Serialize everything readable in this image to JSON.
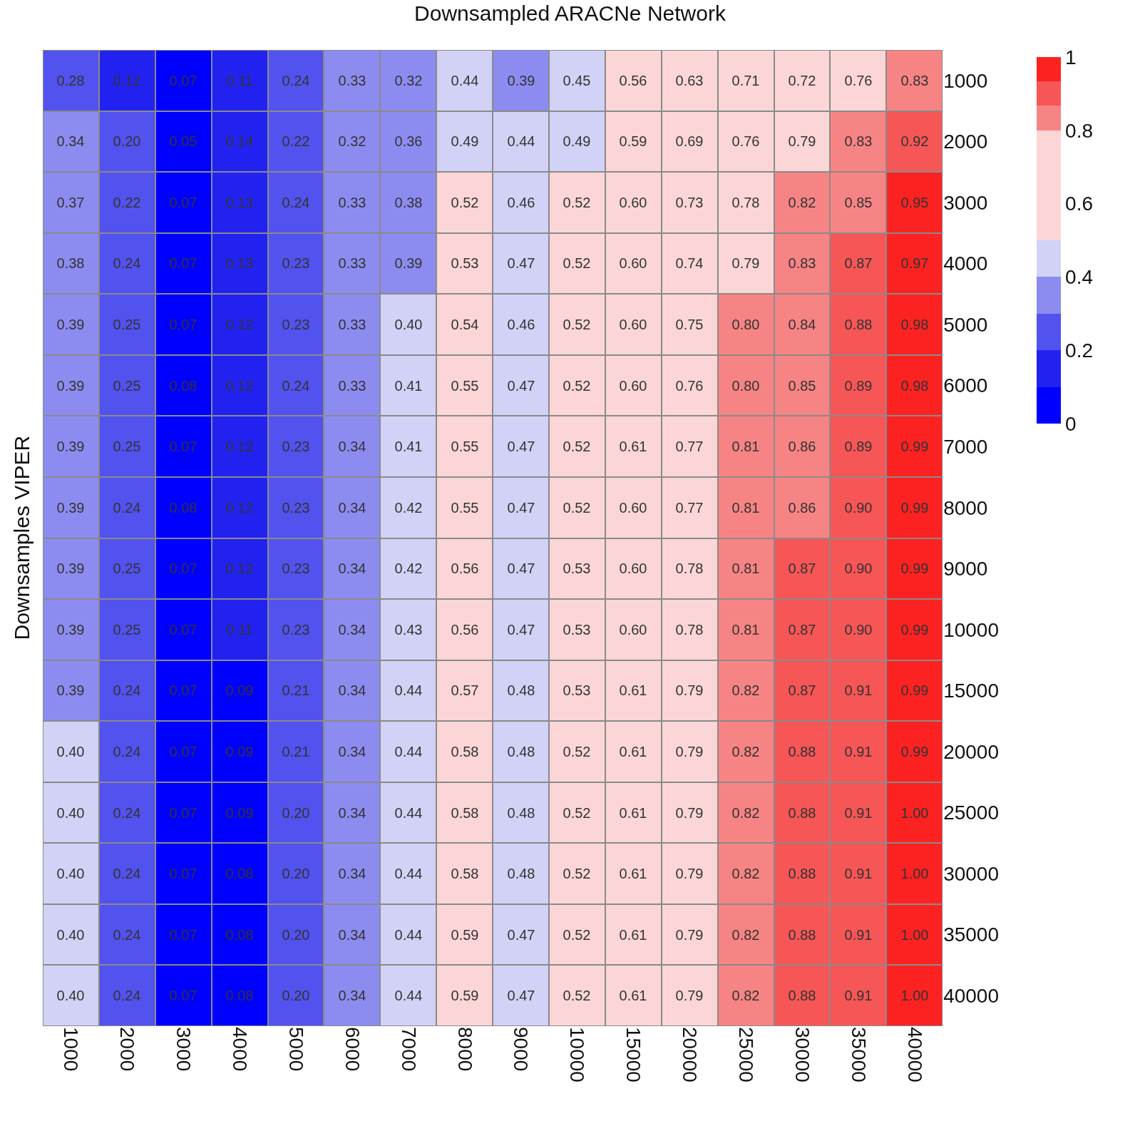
{
  "chart_data": {
    "type": "heatmap",
    "title": "Downsampled ARACNe Network",
    "ylabel": "Downsamples VIPER",
    "categories": [
      "1000",
      "2000",
      "3000",
      "4000",
      "5000",
      "6000",
      "7000",
      "8000",
      "9000",
      "10000",
      "15000",
      "20000",
      "25000",
      "30000",
      "35000",
      "40000"
    ],
    "y_categories": [
      "1000",
      "2000",
      "3000",
      "4000",
      "5000",
      "6000",
      "7000",
      "8000",
      "9000",
      "10000",
      "15000",
      "20000",
      "25000",
      "30000",
      "35000",
      "40000"
    ],
    "cells": [
      [
        0.28,
        0.12,
        0.07,
        0.11,
        0.24,
        0.33,
        0.32,
        0.44,
        0.39,
        0.45,
        0.56,
        0.63,
        0.71,
        0.72,
        0.76,
        0.83
      ],
      [
        0.34,
        0.2,
        0.05,
        0.14,
        0.22,
        0.32,
        0.36,
        0.49,
        0.44,
        0.49,
        0.59,
        0.69,
        0.76,
        0.79,
        0.83,
        0.92
      ],
      [
        0.37,
        0.22,
        0.07,
        0.13,
        0.24,
        0.33,
        0.38,
        0.52,
        0.46,
        0.52,
        0.6,
        0.73,
        0.78,
        0.82,
        0.85,
        0.95
      ],
      [
        0.38,
        0.24,
        0.07,
        0.13,
        0.23,
        0.33,
        0.39,
        0.53,
        0.47,
        0.52,
        0.6,
        0.74,
        0.79,
        0.83,
        0.87,
        0.97
      ],
      [
        0.39,
        0.25,
        0.07,
        0.12,
        0.23,
        0.33,
        0.4,
        0.54,
        0.46,
        0.52,
        0.6,
        0.75,
        0.8,
        0.84,
        0.88,
        0.98
      ],
      [
        0.39,
        0.25,
        0.08,
        0.12,
        0.24,
        0.33,
        0.41,
        0.55,
        0.47,
        0.52,
        0.6,
        0.76,
        0.8,
        0.85,
        0.89,
        0.98
      ],
      [
        0.39,
        0.25,
        0.07,
        0.12,
        0.23,
        0.34,
        0.41,
        0.55,
        0.47,
        0.52,
        0.61,
        0.77,
        0.81,
        0.86,
        0.89,
        0.99
      ],
      [
        0.39,
        0.24,
        0.08,
        0.12,
        0.23,
        0.34,
        0.42,
        0.55,
        0.47,
        0.52,
        0.6,
        0.77,
        0.81,
        0.86,
        0.9,
        0.99
      ],
      [
        0.39,
        0.25,
        0.07,
        0.12,
        0.23,
        0.34,
        0.42,
        0.56,
        0.47,
        0.53,
        0.6,
        0.78,
        0.81,
        0.87,
        0.9,
        0.99
      ],
      [
        0.39,
        0.25,
        0.07,
        0.11,
        0.23,
        0.34,
        0.43,
        0.56,
        0.47,
        0.53,
        0.6,
        0.78,
        0.81,
        0.87,
        0.9,
        0.99
      ],
      [
        0.39,
        0.24,
        0.07,
        0.09,
        0.21,
        0.34,
        0.44,
        0.57,
        0.48,
        0.53,
        0.61,
        0.79,
        0.82,
        0.87,
        0.91,
        0.99
      ],
      [
        0.4,
        0.24,
        0.07,
        0.09,
        0.21,
        0.34,
        0.44,
        0.58,
        0.48,
        0.52,
        0.61,
        0.79,
        0.82,
        0.88,
        0.91,
        0.99
      ],
      [
        0.4,
        0.24,
        0.07,
        0.09,
        0.2,
        0.34,
        0.44,
        0.58,
        0.48,
        0.52,
        0.61,
        0.79,
        0.82,
        0.88,
        0.91,
        1.0
      ],
      [
        0.4,
        0.24,
        0.07,
        0.08,
        0.2,
        0.34,
        0.44,
        0.58,
        0.48,
        0.52,
        0.61,
        0.79,
        0.82,
        0.88,
        0.91,
        1.0
      ],
      [
        0.4,
        0.24,
        0.07,
        0.08,
        0.2,
        0.34,
        0.44,
        0.59,
        0.47,
        0.52,
        0.61,
        0.79,
        0.82,
        0.88,
        0.91,
        1.0
      ],
      [
        0.4,
        0.24,
        0.07,
        0.08,
        0.2,
        0.34,
        0.44,
        0.59,
        0.47,
        0.52,
        0.61,
        0.79,
        0.82,
        0.88,
        0.91,
        1.0
      ]
    ],
    "cell_labels": [
      [
        "0.28",
        "0.12",
        "0.07",
        "0.11",
        "0.24",
        "0.33",
        "0.32",
        "0.44",
        "0.39",
        "0.45",
        "0.56",
        "0.63",
        "0.71",
        "0.72",
        "0.76",
        "0.83"
      ],
      [
        "0.34",
        "0.20",
        "0.05",
        "0.14",
        "0.22",
        "0.32",
        "0.36",
        "0.49",
        "0.44",
        "0.49",
        "0.59",
        "0.69",
        "0.76",
        "0.79",
        "0.83",
        "0.92"
      ],
      [
        "0.37",
        "0.22",
        "0.07",
        "0.13",
        "0.24",
        "0.33",
        "0.38",
        "0.52",
        "0.46",
        "0.52",
        "0.60",
        "0.73",
        "0.78",
        "0.82",
        "0.85",
        "0.95"
      ],
      [
        "0.38",
        "0.24",
        "0.07",
        "0.13",
        "0.23",
        "0.33",
        "0.39",
        "0.53",
        "0.47",
        "0.52",
        "0.60",
        "0.74",
        "0.79",
        "0.83",
        "0.87",
        "0.97"
      ],
      [
        "0.39",
        "0.25",
        "0.07",
        "0.12",
        "0.23",
        "0.33",
        "0.40",
        "0.54",
        "0.46",
        "0.52",
        "0.60",
        "0.75",
        "0.80",
        "0.84",
        "0.88",
        "0.98"
      ],
      [
        "0.39",
        "0.25",
        "0.08",
        "0.12",
        "0.24",
        "0.33",
        "0.41",
        "0.55",
        "0.47",
        "0.52",
        "0.60",
        "0.76",
        "0.80",
        "0.85",
        "0.89",
        "0.98"
      ],
      [
        "0.39",
        "0.25",
        "0.07",
        "0.12",
        "0.23",
        "0.34",
        "0.41",
        "0.55",
        "0.47",
        "0.52",
        "0.61",
        "0.77",
        "0.81",
        "0.86",
        "0.89",
        "0.99"
      ],
      [
        "0.39",
        "0.24",
        "0.08",
        "0.12",
        "0.23",
        "0.34",
        "0.42",
        "0.55",
        "0.47",
        "0.52",
        "0.60",
        "0.77",
        "0.81",
        "0.86",
        "0.90",
        "0.99"
      ],
      [
        "0.39",
        "0.25",
        "0.07",
        "0.12",
        "0.23",
        "0.34",
        "0.42",
        "0.56",
        "0.47",
        "0.53",
        "0.60",
        "0.78",
        "0.81",
        "0.87",
        "0.90",
        "0.99"
      ],
      [
        "0.39",
        "0.25",
        "0.07",
        "0.11",
        "0.23",
        "0.34",
        "0.43",
        "0.56",
        "0.47",
        "0.53",
        "0.60",
        "0.78",
        "0.81",
        "0.87",
        "0.90",
        "0.99"
      ],
      [
        "0.39",
        "0.24",
        "0.07",
        "0.09",
        "0.21",
        "0.34",
        "0.44",
        "0.57",
        "0.48",
        "0.53",
        "0.61",
        "0.79",
        "0.82",
        "0.87",
        "0.91",
        "0.99"
      ],
      [
        "0.40",
        "0.24",
        "0.07",
        "0.09",
        "0.21",
        "0.34",
        "0.44",
        "0.58",
        "0.48",
        "0.52",
        "0.61",
        "0.79",
        "0.82",
        "0.88",
        "0.91",
        "0.99"
      ],
      [
        "0.40",
        "0.24",
        "0.07",
        "0.09",
        "0.20",
        "0.34",
        "0.44",
        "0.58",
        "0.48",
        "0.52",
        "0.61",
        "0.79",
        "0.82",
        "0.88",
        "0.91",
        "1.00"
      ],
      [
        "0.40",
        "0.24",
        "0.07",
        "0.08",
        "0.20",
        "0.34",
        "0.44",
        "0.58",
        "0.48",
        "0.52",
        "0.61",
        "0.79",
        "0.82",
        "0.88",
        "0.91",
        "1.00"
      ],
      [
        "0.40",
        "0.24",
        "0.07",
        "0.08",
        "0.20",
        "0.34",
        "0.44",
        "0.59",
        "0.47",
        "0.52",
        "0.61",
        "0.79",
        "0.82",
        "0.88",
        "0.91",
        "1.00"
      ],
      [
        "0.40",
        "0.24",
        "0.07",
        "0.08",
        "0.20",
        "0.34",
        "0.44",
        "0.59",
        "0.47",
        "0.52",
        "0.61",
        "0.79",
        "0.82",
        "0.88",
        "0.91",
        "1.00"
      ]
    ],
    "clim": [
      0,
      1
    ],
    "cticks": [
      0,
      0.2,
      0.4,
      0.6,
      0.8,
      1
    ]
  }
}
